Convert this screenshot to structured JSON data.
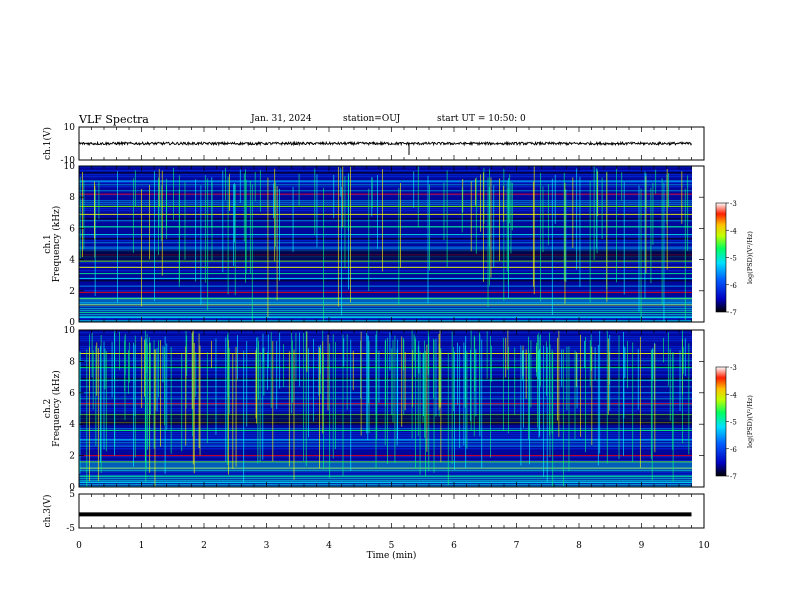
{
  "header": {
    "title": "VLF Spectra",
    "date": "Jan. 31, 2024",
    "station": "station=OUJ",
    "start_ut": "start UT =  10:50: 0"
  },
  "chart_data": [
    {
      "type": "line",
      "name": "ch1-waveform",
      "ylabel": "ch.1(V)",
      "ylim": [
        -10,
        10
      ],
      "ytick_labels": [
        "10",
        "-10"
      ],
      "x": [
        0,
        10
      ],
      "approx_level": 0,
      "note_values": "noisy waveform, amplitude approx ±1 V around 0"
    },
    {
      "type": "heatmap",
      "name": "ch1-spectrogram",
      "ylabel": "ch.1 Frequency (kHz)",
      "ylim": [
        0,
        10
      ],
      "ytick_labels": [
        "0",
        "2",
        "4",
        "6",
        "8",
        "10"
      ],
      "xlim": [
        0,
        9.8
      ],
      "colorbar": {
        "label": "log(PSD)(V²/Hz)",
        "range": [
          -7,
          -3
        ],
        "tick_labels": [
          "-3",
          "-4",
          "-5",
          "-6",
          "-7"
        ]
      },
      "bands_khz": [
        0.3,
        0.6,
        1.1,
        1.5,
        1.9,
        2.3,
        2.8,
        3.1,
        3.5,
        3.9,
        4.3,
        4.8,
        5.6,
        6.1,
        6.9,
        7.4,
        8.2,
        9.0
      ]
    },
    {
      "type": "heatmap",
      "name": "ch2-spectrogram",
      "ylabel": "ch.2 Frequency (kHz)",
      "ylim": [
        0,
        10
      ],
      "ytick_labels": [
        "0",
        "2",
        "4",
        "6",
        "8",
        "10"
      ],
      "xlim": [
        0,
        9.8
      ],
      "colorbar": {
        "label": "log(PSD)(V²/Hz)",
        "range": [
          -7,
          -3
        ],
        "tick_labels": [
          "-3",
          "-4",
          "-5",
          "-6",
          "-7"
        ]
      },
      "bands_khz": [
        0.3,
        0.7,
        1.2,
        1.6,
        2.0,
        2.6,
        3.0,
        3.6,
        4.1,
        4.6,
        5.3,
        6.0,
        6.8,
        7.6,
        8.5
      ]
    },
    {
      "type": "line",
      "name": "ch3-waveform",
      "ylabel": "ch.3(V)",
      "ylim": [
        -5,
        5
      ],
      "ytick_labels": [
        "5",
        "-5"
      ],
      "x": [
        0,
        9.8
      ],
      "y": [
        -1,
        -1
      ]
    }
  ],
  "xaxis": {
    "label": "Time (min)",
    "ticks": [
      0,
      1,
      2,
      3,
      4,
      5,
      6,
      7,
      8,
      9,
      10
    ],
    "tick_labels": [
      "0",
      "1",
      "2",
      "3",
      "4",
      "5",
      "6",
      "7",
      "8",
      "9",
      "10"
    ]
  },
  "colors": {
    "background": "#ffffff",
    "axis": "#000000",
    "colormap": [
      "#000000",
      "#0000b0",
      "#0030ff",
      "#00a0ff",
      "#00ffff",
      "#00ff80",
      "#80ff00",
      "#ffff00",
      "#ff8000",
      "#ff0000",
      "#ffffff"
    ]
  }
}
